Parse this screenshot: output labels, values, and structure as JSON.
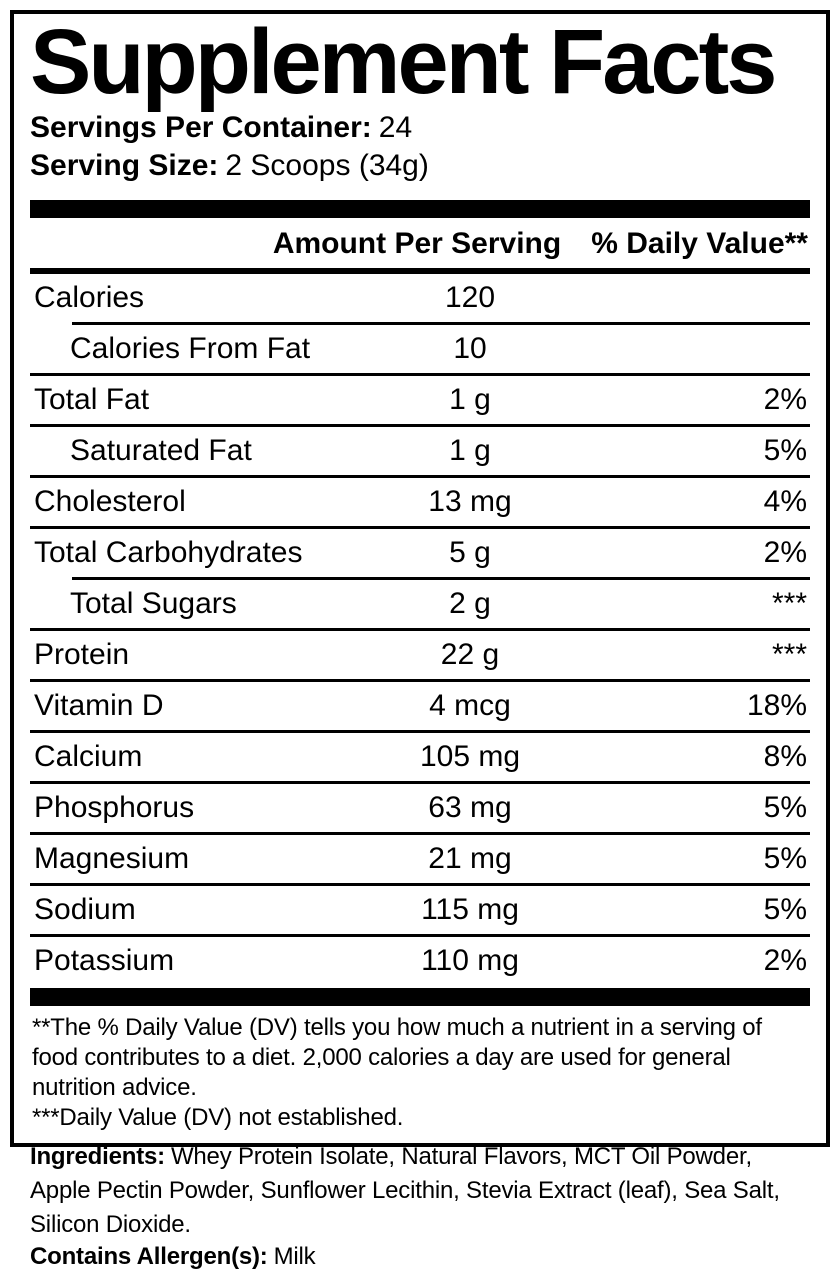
{
  "panel": {
    "title": "Supplement Facts",
    "servings_per_container": {
      "label": "Servings Per Container:",
      "value": "24"
    },
    "serving_size": {
      "label": "Serving Size:",
      "value": "2 Scoops (34g)"
    },
    "columns": {
      "amount": "Amount Per Serving",
      "daily_value": "% Daily Value**"
    },
    "rows": [
      {
        "name": "Calories",
        "amount": "120",
        "dv": "",
        "indent": false,
        "sep": "none"
      },
      {
        "name": "Calories From Fat",
        "amount": "10",
        "dv": "",
        "indent": true,
        "sep": "indent"
      },
      {
        "name": "Total Fat",
        "amount": "1 g",
        "dv": "2%",
        "indent": false,
        "sep": "full"
      },
      {
        "name": "Saturated Fat",
        "amount": "1 g",
        "dv": "5%",
        "indent": true,
        "sep": "full"
      },
      {
        "name": "Cholesterol",
        "amount": "13 mg",
        "dv": "4%",
        "indent": false,
        "sep": "full"
      },
      {
        "name": "Total Carbohydrates",
        "amount": "5 g",
        "dv": "2%",
        "indent": false,
        "sep": "full"
      },
      {
        "name": "Total Sugars",
        "amount": "2 g",
        "dv": "***",
        "indent": true,
        "sep": "indent"
      },
      {
        "name": "Protein",
        "amount": "22 g",
        "dv": "***",
        "indent": false,
        "sep": "full"
      },
      {
        "name": "Vitamin D",
        "amount": "4 mcg",
        "dv": "18%",
        "indent": false,
        "sep": "full"
      },
      {
        "name": "Calcium",
        "amount": "105 mg",
        "dv": "8%",
        "indent": false,
        "sep": "full"
      },
      {
        "name": "Phosphorus",
        "amount": "63 mg",
        "dv": "5%",
        "indent": false,
        "sep": "full"
      },
      {
        "name": "Magnesium",
        "amount": "21 mg",
        "dv": "5%",
        "indent": false,
        "sep": "full"
      },
      {
        "name": "Sodium",
        "amount": "115 mg",
        "dv": "5%",
        "indent": false,
        "sep": "full"
      },
      {
        "name": "Potassium",
        "amount": "110 mg",
        "dv": "2%",
        "indent": false,
        "sep": "full"
      }
    ],
    "footnotes": [
      "**The % Daily Value (DV) tells you how much a nutrient in a serving of food contributes to a diet. 2,000 calories a day are used for general nutrition advice.",
      "***Daily Value (DV) not established."
    ]
  },
  "ingredients": {
    "label": "Ingredients:",
    "text": "Whey Protein Isolate, Natural Flavors, MCT Oil Powder, Apple Pectin Powder, Sunflower Lecithin, Stevia Extract (leaf), Sea Salt, Silicon Dioxide."
  },
  "allergens": {
    "label": "Contains Allergen(s):",
    "value": "Milk"
  },
  "colors": {
    "ink": "#000000",
    "background": "#ffffff"
  }
}
